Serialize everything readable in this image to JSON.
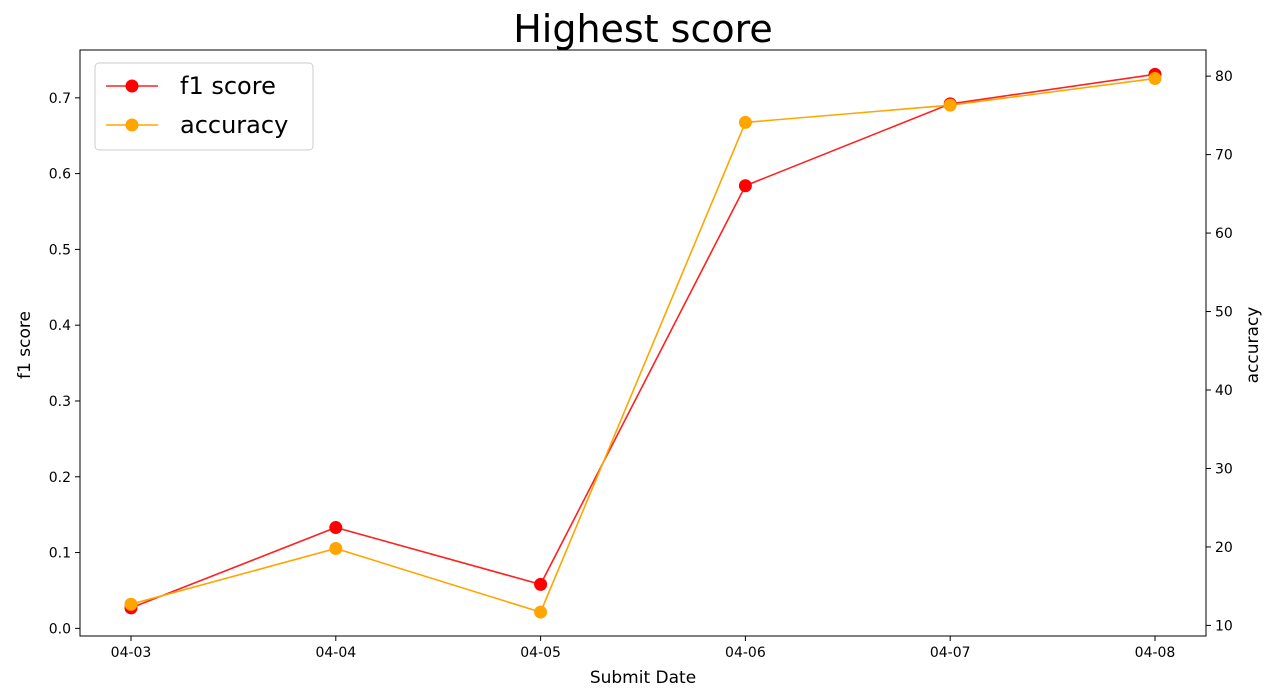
{
  "chart_data": {
    "type": "line",
    "title": "Highest score",
    "xlabel": "Submit Date",
    "ylabel_left": "f1 score",
    "ylabel_right": "accuracy",
    "categories": [
      "04-03",
      "04-04",
      "04-05",
      "04-06",
      "04-07",
      "04-08"
    ],
    "ylim_left": [
      -0.0101,
      0.7631
    ],
    "ylim_right": [
      8.65,
      83.33
    ],
    "yticks_left": [
      "0.0",
      "0.1",
      "0.2",
      "0.3",
      "0.4",
      "0.5",
      "0.6",
      "0.7"
    ],
    "yticks_right": [
      "10",
      "20",
      "30",
      "40",
      "50",
      "60",
      "70",
      "80"
    ],
    "grid": false,
    "legend_position": "top-left",
    "series": [
      {
        "name": "f1 score",
        "axis": "left",
        "color": "#ff0000",
        "line_color": "#ff2020",
        "values": [
          0.027,
          0.133,
          0.058,
          0.584,
          0.692,
          0.731
        ]
      },
      {
        "name": "accuracy",
        "axis": "right",
        "color": "#ffa500",
        "line_color": "#ffa500",
        "values": [
          12.7,
          19.8,
          11.7,
          74.1,
          76.3,
          79.7
        ]
      }
    ]
  }
}
